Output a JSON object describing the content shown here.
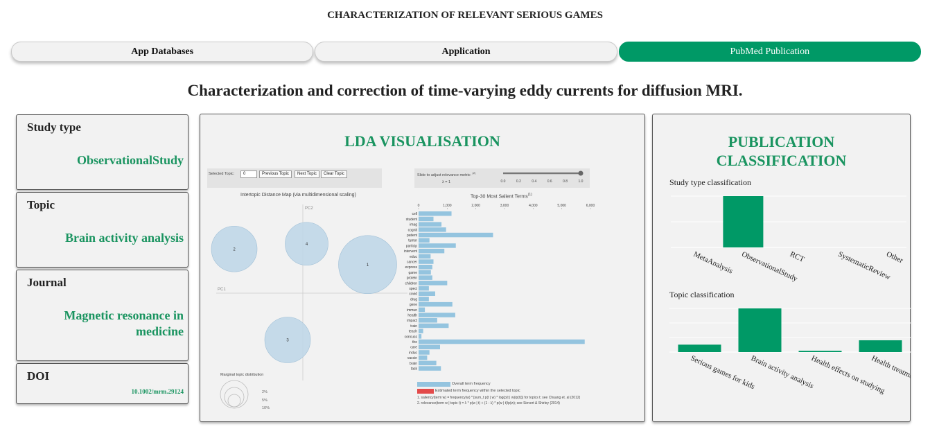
{
  "app": {
    "title": "CHARACTERIZATION OF RELEVANT SERIOUS GAMES"
  },
  "tabs": [
    {
      "label": "App Databases",
      "active": false
    },
    {
      "label": "Application",
      "active": false
    },
    {
      "label": "PubMed Publication",
      "active": true
    }
  ],
  "publication": {
    "title": "Characterization and correction of time-varying eddy currents for diffusion MRI."
  },
  "info_cards": {
    "study_type": {
      "label": "Study type",
      "value": "ObservationalStudy"
    },
    "topic": {
      "label": "Topic",
      "value": "Brain activity analysis"
    },
    "journal": {
      "label": "Journal",
      "value_line1": "Magnetic resonance in",
      "value_line2": "medicine"
    },
    "doi": {
      "label": "DOI",
      "value": "10.1002/mrm.29124"
    }
  },
  "lda": {
    "title": "LDA VISUALISATION",
    "selected_topic_label": "Selected Topic:",
    "selected_topic_value": "0",
    "buttons": {
      "previous": "Previous Topic",
      "next": "Next Topic",
      "clear": "Clear Topic"
    },
    "slider_label": "Slide to adjust relevance metric:",
    "slider_sup": "(2)",
    "lambda_label": "λ = 1",
    "slider_ticks": [
      "0.0",
      "0.2",
      "0.4",
      "0.6",
      "0.8",
      "1.0"
    ],
    "lambda_value": 1.0,
    "map_title": "Intertopic Distance Map (via multidimensional scaling)",
    "pc1": "PC1",
    "pc2": "PC2",
    "topics": [
      {
        "id": "1",
        "pc1": 0.85,
        "pc2": 0.55
      },
      {
        "id": "2",
        "pc1": -0.9,
        "pc2": 0.85
      },
      {
        "id": "3",
        "pc1": -0.2,
        "pc2": -0.9
      },
      {
        "id": "4",
        "pc1": 0.05,
        "pc2": 0.95
      }
    ],
    "marginal_title": "Marginal topic distribution",
    "marginal_levels": [
      "2%",
      "5%",
      "10%"
    ],
    "terms_title": "Top-30 Most Salient Terms",
    "terms_sup": "(1)",
    "terms_axis_ticks": [
      "0",
      "1,000",
      "2,000",
      "3,000",
      "4,000",
      "5,000",
      "6,000"
    ],
    "terms_axis_max": 6000,
    "terms": [
      {
        "term": "cell",
        "value": 1150
      },
      {
        "term": "student",
        "value": 520
      },
      {
        "term": "imag",
        "value": 800
      },
      {
        "term": "cognit",
        "value": 960
      },
      {
        "term": "patient",
        "value": 2600
      },
      {
        "term": "tumor",
        "value": 380
      },
      {
        "term": "particip",
        "value": 1300
      },
      {
        "term": "intervent",
        "value": 900
      },
      {
        "term": "educ",
        "value": 420
      },
      {
        "term": "cancer",
        "value": 520
      },
      {
        "term": "express",
        "value": 480
      },
      {
        "term": "game",
        "value": 430
      },
      {
        "term": "protein",
        "value": 480
      },
      {
        "term": "children",
        "value": 1000
      },
      {
        "term": "speci",
        "value": 360
      },
      {
        "term": "covid",
        "value": 580
      },
      {
        "term": "drug",
        "value": 360
      },
      {
        "term": "gene",
        "value": 1180
      },
      {
        "term": "immun",
        "value": 220
      },
      {
        "term": "health",
        "value": 1280
      },
      {
        "term": "impact",
        "value": 650
      },
      {
        "term": "train",
        "value": 1050
      },
      {
        "term": "teach",
        "value": 160
      },
      {
        "term": "concuss",
        "value": 100
      },
      {
        "term": "the",
        "value": 5800
      },
      {
        "term": "care",
        "value": 750
      },
      {
        "term": "induc",
        "value": 380
      },
      {
        "term": "vaccin",
        "value": 300
      },
      {
        "term": "brain",
        "value": 620
      },
      {
        "term": "task",
        "value": 780
      }
    ],
    "legend_overall": "Overall term frequency",
    "legend_estimated": "Estimated term frequency within the selected topic",
    "footnote1": "1. saliency(term w) = frequency(w) * [sum_t p(t | w) * log(p(t | w)/p(t))] for topics t; see Chuang et. al (2012)",
    "footnote2": "2. relevance(term w | topic t) = λ * p(w | t) + (1 - λ) * p(w | t)/p(w); see Sievert & Shirley (2014)",
    "colors": {
      "bar": "#94c4df",
      "circle": "#bdd6e8",
      "red": "#e34a4a"
    }
  },
  "classification": {
    "title_line1": "PUBLICATION",
    "title_line2": "CLASSIFICATION",
    "accent": "#009966",
    "charts": [
      {
        "type": "bar",
        "title": "Study type classification",
        "categories": [
          "MetaAnalysis",
          "ObservationalStudy",
          "RCT",
          "SystematicReview",
          "Other"
        ],
        "values": [
          0,
          1,
          0,
          0,
          0
        ],
        "ylim": [
          0,
          1
        ]
      },
      {
        "type": "bar",
        "title": "Topic classification",
        "categories": [
          "Serious games for kids",
          "Brain activity analysis",
          "Health effects on studying",
          "Health treatment experimen"
        ],
        "values": [
          0.17,
          1,
          0.03,
          0.27
        ],
        "ylim": [
          0,
          1
        ]
      }
    ]
  }
}
